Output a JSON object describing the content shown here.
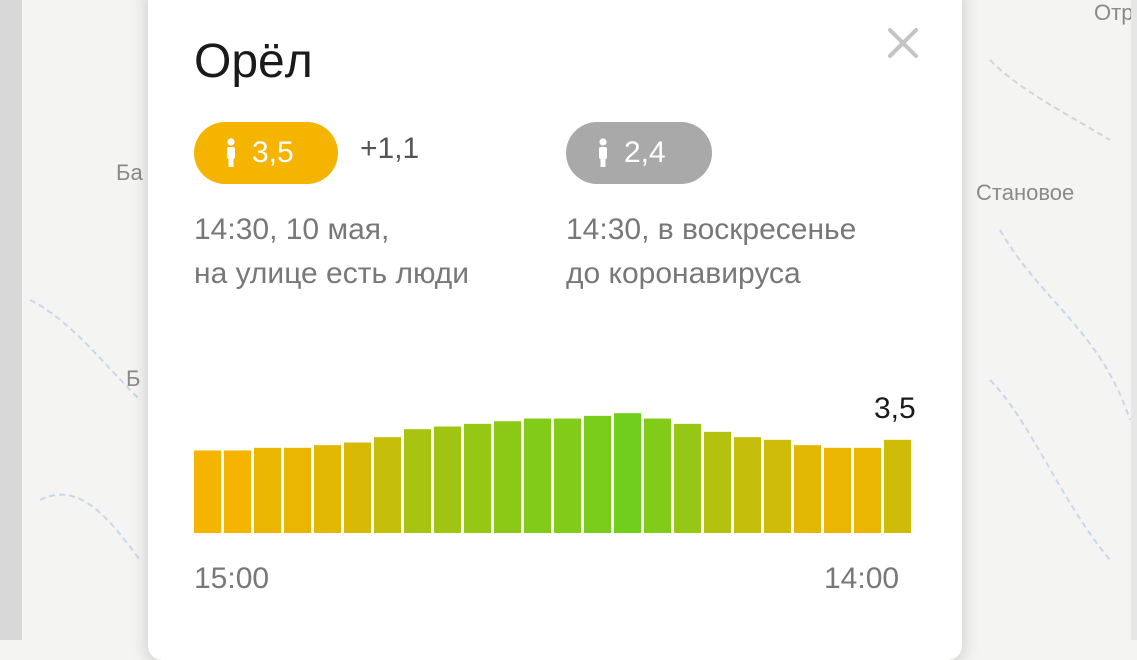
{
  "map": {
    "labels": [
      "Отр",
      "Ба",
      "Становое",
      "Б"
    ]
  },
  "card": {
    "title": "Орёл",
    "close_icon": "close-icon",
    "now": {
      "score": "3,5",
      "delta": "+1,1",
      "color": "#f5b400",
      "icon": "person-icon",
      "caption_line1": "14:30, 10 мая,",
      "caption_line2": "на улице есть люди"
    },
    "before": {
      "score": "2,4",
      "color": "#a9a9a9",
      "icon": "person-icon",
      "caption_line1": "14:30, в воскресенье",
      "caption_line2": "до коронавируса"
    },
    "chart_current_label": "3,5"
  },
  "chart_data": {
    "type": "bar",
    "x_tick_labels": [
      "15:00",
      "14:00"
    ],
    "values": [
      3.1,
      3.1,
      3.2,
      3.2,
      3.3,
      3.4,
      3.6,
      3.9,
      4.0,
      4.1,
      4.2,
      4.3,
      4.3,
      4.4,
      4.5,
      4.3,
      4.1,
      3.8,
      3.6,
      3.5,
      3.3,
      3.2,
      3.2,
      3.5
    ],
    "ylim": [
      0,
      5
    ],
    "color_low": "#f5b400",
    "color_high": "#6fcf1c",
    "grid": false
  }
}
